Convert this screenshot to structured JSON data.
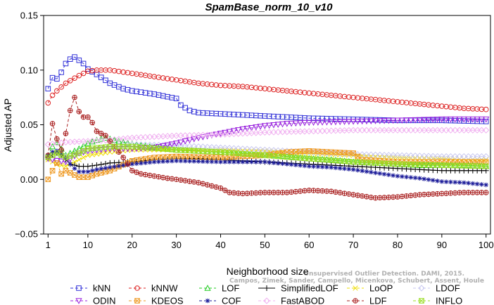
{
  "chart_data": {
    "type": "line",
    "title": "SpamBase_norm_10_v10",
    "xlabel": "Neighborhood size",
    "ylabel": "Adjusted AP",
    "xlim": [
      0,
      101
    ],
    "ylim": [
      -0.05,
      0.15
    ],
    "xticks": [
      1,
      10,
      20,
      30,
      40,
      50,
      60,
      70,
      80,
      90,
      100
    ],
    "yticks": [
      -0.05,
      0.0,
      0.05,
      0.1,
      0.15
    ],
    "ytick_labels": [
      "−0.05",
      "0.00",
      "0.05",
      "0.10",
      "0.15"
    ],
    "grid": false,
    "legend_position": "bottom",
    "watermark": [
      "Unsupervised Outlier Detection. DAMI, 2015.",
      "Campos, Zimek, Sander, Campello, Micenkova, Schubert, Assent, Houle"
    ],
    "series": [
      {
        "name": "kNN",
        "color": "#3232d8",
        "marker": "square",
        "dash": "4,3",
        "points": [
          [
            1,
            0.083
          ],
          [
            2,
            0.093
          ],
          [
            3,
            0.092
          ],
          [
            4,
            0.098
          ],
          [
            5,
            0.106
          ],
          [
            6,
            0.11
          ],
          [
            7,
            0.112
          ],
          [
            8,
            0.109
          ],
          [
            9,
            0.106
          ],
          [
            10,
            0.101
          ],
          [
            12,
            0.096
          ],
          [
            15,
            0.088
          ],
          [
            18,
            0.083
          ],
          [
            20,
            0.081
          ],
          [
            25,
            0.078
          ],
          [
            30,
            0.074
          ],
          [
            31,
            0.068
          ],
          [
            33,
            0.063
          ],
          [
            35,
            0.061
          ],
          [
            40,
            0.06
          ],
          [
            45,
            0.059
          ],
          [
            50,
            0.058
          ],
          [
            55,
            0.057
          ],
          [
            60,
            0.056
          ],
          [
            70,
            0.055
          ],
          [
            80,
            0.054
          ],
          [
            90,
            0.054
          ],
          [
            100,
            0.053
          ]
        ]
      },
      {
        "name": "kNNW",
        "color": "#dd2222",
        "marker": "circle",
        "dash": "4,3",
        "points": [
          [
            1,
            0.07
          ],
          [
            2,
            0.077
          ],
          [
            3,
            0.081
          ],
          [
            5,
            0.088
          ],
          [
            8,
            0.095
          ],
          [
            10,
            0.099
          ],
          [
            12,
            0.1
          ],
          [
            15,
            0.1
          ],
          [
            20,
            0.097
          ],
          [
            25,
            0.094
          ],
          [
            30,
            0.091
          ],
          [
            35,
            0.088
          ],
          [
            40,
            0.086
          ],
          [
            45,
            0.085
          ],
          [
            50,
            0.083
          ],
          [
            55,
            0.081
          ],
          [
            60,
            0.079
          ],
          [
            65,
            0.077
          ],
          [
            70,
            0.075
          ],
          [
            75,
            0.073
          ],
          [
            80,
            0.071
          ],
          [
            85,
            0.069
          ],
          [
            90,
            0.067
          ],
          [
            95,
            0.065
          ],
          [
            100,
            0.064
          ]
        ]
      },
      {
        "name": "LOF",
        "color": "#22cc22",
        "marker": "triangle",
        "dash": "4,3",
        "points": [
          [
            1,
            0.022
          ],
          [
            2,
            0.03
          ],
          [
            3,
            0.034
          ],
          [
            4,
            0.028
          ],
          [
            5,
            0.022
          ],
          [
            6,
            0.024
          ],
          [
            8,
            0.028
          ],
          [
            10,
            0.033
          ],
          [
            12,
            0.036
          ],
          [
            14,
            0.038
          ],
          [
            18,
            0.034
          ],
          [
            22,
            0.031
          ],
          [
            26,
            0.029
          ],
          [
            30,
            0.027
          ],
          [
            35,
            0.026
          ],
          [
            40,
            0.025
          ],
          [
            45,
            0.024
          ],
          [
            50,
            0.023
          ],
          [
            55,
            0.021
          ],
          [
            60,
            0.019
          ],
          [
            65,
            0.018
          ],
          [
            70,
            0.016
          ],
          [
            75,
            0.015
          ],
          [
            80,
            0.014
          ],
          [
            85,
            0.013
          ],
          [
            90,
            0.013
          ],
          [
            95,
            0.013
          ],
          [
            100,
            0.012
          ]
        ]
      },
      {
        "name": "SimplifiedLOF",
        "color": "#000000",
        "marker": "plus",
        "dash": "",
        "points": [
          [
            1,
            0.02
          ],
          [
            2,
            0.022
          ],
          [
            3,
            0.024
          ],
          [
            4,
            0.022
          ],
          [
            5,
            0.018
          ],
          [
            6,
            0.014
          ],
          [
            8,
            0.012
          ],
          [
            10,
            0.012
          ],
          [
            12,
            0.013
          ],
          [
            15,
            0.015
          ],
          [
            20,
            0.016
          ],
          [
            25,
            0.018
          ],
          [
            30,
            0.019
          ],
          [
            35,
            0.019
          ],
          [
            40,
            0.018
          ],
          [
            45,
            0.017
          ],
          [
            50,
            0.016
          ],
          [
            55,
            0.015
          ],
          [
            60,
            0.014
          ],
          [
            65,
            0.013
          ],
          [
            70,
            0.012
          ],
          [
            75,
            0.011
          ],
          [
            80,
            0.01
          ],
          [
            85,
            0.009
          ],
          [
            90,
            0.008
          ],
          [
            95,
            0.008
          ],
          [
            100,
            0.008
          ]
        ]
      },
      {
        "name": "LoOP",
        "color": "#eedd00",
        "marker": "x",
        "dash": "4,3",
        "points": [
          [
            1,
            0.018
          ],
          [
            2,
            0.016
          ],
          [
            3,
            0.014
          ],
          [
            5,
            0.012
          ],
          [
            8,
            0.018
          ],
          [
            10,
            0.022
          ],
          [
            15,
            0.025
          ],
          [
            20,
            0.027
          ],
          [
            30,
            0.027
          ],
          [
            40,
            0.027
          ],
          [
            50,
            0.026
          ],
          [
            60,
            0.024
          ],
          [
            70,
            0.022
          ],
          [
            80,
            0.02
          ],
          [
            90,
            0.019
          ],
          [
            100,
            0.018
          ]
        ]
      },
      {
        "name": "LDOF",
        "color": "#c8c8f0",
        "marker": "diamond",
        "dash": "4,3",
        "points": [
          [
            1,
            0.022
          ],
          [
            3,
            0.022
          ],
          [
            5,
            0.021
          ],
          [
            10,
            0.026
          ],
          [
            15,
            0.03
          ],
          [
            20,
            0.032
          ],
          [
            30,
            0.031
          ],
          [
            40,
            0.029
          ],
          [
            50,
            0.027
          ],
          [
            60,
            0.025
          ],
          [
            70,
            0.023
          ],
          [
            80,
            0.022
          ],
          [
            90,
            0.021
          ],
          [
            100,
            0.021
          ]
        ]
      },
      {
        "name": "ODIN",
        "color": "#9922dd",
        "marker": "triangle-down",
        "dash": "4,3",
        "points": [
          [
            1,
            0.019
          ],
          [
            3,
            0.017
          ],
          [
            5,
            0.016
          ],
          [
            8,
            0.024
          ],
          [
            10,
            0.026
          ],
          [
            15,
            0.028
          ],
          [
            20,
            0.028
          ],
          [
            25,
            0.029
          ],
          [
            30,
            0.033
          ],
          [
            35,
            0.038
          ],
          [
            40,
            0.042
          ],
          [
            45,
            0.046
          ],
          [
            50,
            0.049
          ],
          [
            55,
            0.051
          ],
          [
            60,
            0.052
          ],
          [
            70,
            0.053
          ],
          [
            80,
            0.054
          ],
          [
            90,
            0.055
          ],
          [
            100,
            0.055
          ]
        ]
      },
      {
        "name": "KDEOS",
        "color": "#ee9922",
        "marker": "square-x",
        "dash": "4,3",
        "points": [
          [
            1,
            0.0
          ],
          [
            2,
            0.008
          ],
          [
            3,
            0.015
          ],
          [
            4,
            0.005
          ],
          [
            5,
            0.008
          ],
          [
            6,
            0.006
          ],
          [
            7,
            0.004
          ],
          [
            8,
            0.002
          ],
          [
            10,
            0.002
          ],
          [
            12,
            0.005
          ],
          [
            15,
            0.008
          ],
          [
            20,
            0.017
          ],
          [
            25,
            0.02
          ],
          [
            30,
            0.021
          ],
          [
            40,
            0.02
          ],
          [
            50,
            0.022
          ],
          [
            55,
            0.025
          ],
          [
            60,
            0.026
          ],
          [
            65,
            0.025
          ],
          [
            70,
            0.024
          ],
          [
            72,
            0.018
          ],
          [
            80,
            0.016
          ],
          [
            90,
            0.016
          ],
          [
            100,
            0.016
          ]
        ]
      },
      {
        "name": "COF",
        "color": "#1a1a99",
        "marker": "asterisk",
        "dash": "4,3",
        "points": [
          [
            1,
            0.022
          ],
          [
            2,
            0.025
          ],
          [
            3,
            0.026
          ],
          [
            4,
            0.024
          ],
          [
            5,
            0.02
          ],
          [
            6,
            0.014
          ],
          [
            7,
            0.01
          ],
          [
            8,
            0.007
          ],
          [
            10,
            0.007
          ],
          [
            12,
            0.009
          ],
          [
            15,
            0.011
          ],
          [
            20,
            0.014
          ],
          [
            25,
            0.016
          ],
          [
            30,
            0.017
          ],
          [
            40,
            0.016
          ],
          [
            50,
            0.016
          ],
          [
            55,
            0.014
          ],
          [
            60,
            0.012
          ],
          [
            65,
            0.011
          ],
          [
            70,
            0.009
          ],
          [
            75,
            0.006
          ],
          [
            80,
            0.003
          ],
          [
            85,
            0.001
          ],
          [
            90,
            -0.002
          ],
          [
            95,
            -0.003
          ],
          [
            100,
            -0.005
          ]
        ]
      },
      {
        "name": "FastABOD",
        "color": "#f0b0f0",
        "marker": "diamond",
        "dash": "4,3",
        "points": [
          [
            1,
            0.032
          ],
          [
            3,
            0.033
          ],
          [
            5,
            0.034
          ],
          [
            10,
            0.035
          ],
          [
            15,
            0.036
          ],
          [
            20,
            0.038
          ],
          [
            25,
            0.039
          ],
          [
            30,
            0.04
          ],
          [
            40,
            0.041
          ],
          [
            50,
            0.043
          ],
          [
            60,
            0.044
          ],
          [
            70,
            0.045
          ],
          [
            80,
            0.045
          ],
          [
            90,
            0.045
          ],
          [
            100,
            0.045
          ]
        ]
      },
      {
        "name": "LDF",
        "color": "#aa2222",
        "marker": "circle-plus",
        "dash": "4,3",
        "points": [
          [
            1,
            0.022
          ],
          [
            2,
            0.051
          ],
          [
            3,
            0.037
          ],
          [
            4,
            0.027
          ],
          [
            5,
            0.042
          ],
          [
            6,
            0.063
          ],
          [
            7,
            0.075
          ],
          [
            8,
            0.062
          ],
          [
            9,
            0.057
          ],
          [
            10,
            0.057
          ],
          [
            11,
            0.052
          ],
          [
            12,
            0.044
          ],
          [
            14,
            0.04
          ],
          [
            16,
            0.03
          ],
          [
            18,
            0.02
          ],
          [
            20,
            0.008
          ],
          [
            22,
            0.005
          ],
          [
            25,
            0.003
          ],
          [
            28,
            0.001
          ],
          [
            30,
            0.0
          ],
          [
            35,
            -0.003
          ],
          [
            40,
            -0.008
          ],
          [
            42,
            -0.012
          ],
          [
            45,
            -0.013
          ],
          [
            50,
            -0.012
          ],
          [
            55,
            -0.012
          ],
          [
            60,
            -0.01
          ],
          [
            65,
            -0.011
          ],
          [
            70,
            -0.014
          ],
          [
            75,
            -0.017
          ],
          [
            80,
            -0.016
          ],
          [
            85,
            -0.014
          ],
          [
            90,
            -0.013
          ],
          [
            95,
            -0.012
          ],
          [
            100,
            -0.012
          ]
        ]
      },
      {
        "name": "INFLO",
        "color": "#99dd22",
        "marker": "square-x",
        "dash": "4,3",
        "points": [
          [
            1,
            0.02
          ],
          [
            3,
            0.024
          ],
          [
            5,
            0.02
          ],
          [
            8,
            0.024
          ],
          [
            10,
            0.028
          ],
          [
            15,
            0.03
          ],
          [
            20,
            0.03
          ],
          [
            30,
            0.027
          ],
          [
            40,
            0.025
          ],
          [
            50,
            0.022
          ],
          [
            60,
            0.019
          ],
          [
            70,
            0.016
          ],
          [
            80,
            0.014
          ],
          [
            90,
            0.013
          ],
          [
            100,
            0.012
          ]
        ]
      }
    ]
  }
}
